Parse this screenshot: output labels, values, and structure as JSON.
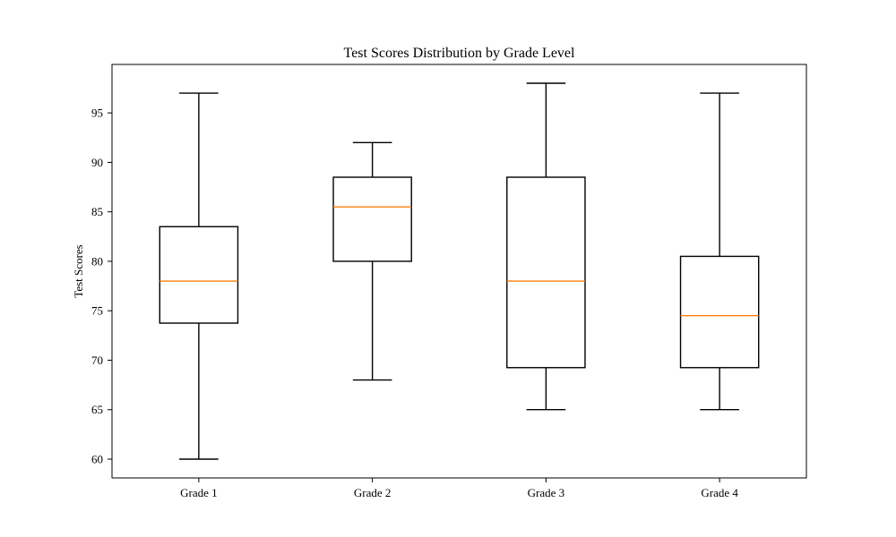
{
  "chart_data": {
    "type": "box",
    "title": "Test Scores Distribution by Grade Level",
    "xlabel": "",
    "ylabel": "Test Scores",
    "categories": [
      "Grade 1",
      "Grade 2",
      "Grade 3",
      "Grade 4"
    ],
    "boxes": [
      {
        "whisker_low": 60,
        "q1": 73.75,
        "median": 78,
        "q3": 83.5,
        "whisker_high": 97
      },
      {
        "whisker_low": 68,
        "q1": 80,
        "median": 85.5,
        "q3": 88.5,
        "whisker_high": 92
      },
      {
        "whisker_low": 65,
        "q1": 69.25,
        "median": 78,
        "q3": 88.5,
        "whisker_high": 98
      },
      {
        "whisker_low": 65,
        "q1": 69.25,
        "median": 74.5,
        "q3": 80.5,
        "whisker_high": 97
      }
    ],
    "ylim": [
      58.1,
      99.9
    ],
    "yticks": [
      60,
      65,
      70,
      75,
      80,
      85,
      90,
      95
    ],
    "grid": false,
    "median_color": "#ff7f0e",
    "box_color": "#000000"
  }
}
